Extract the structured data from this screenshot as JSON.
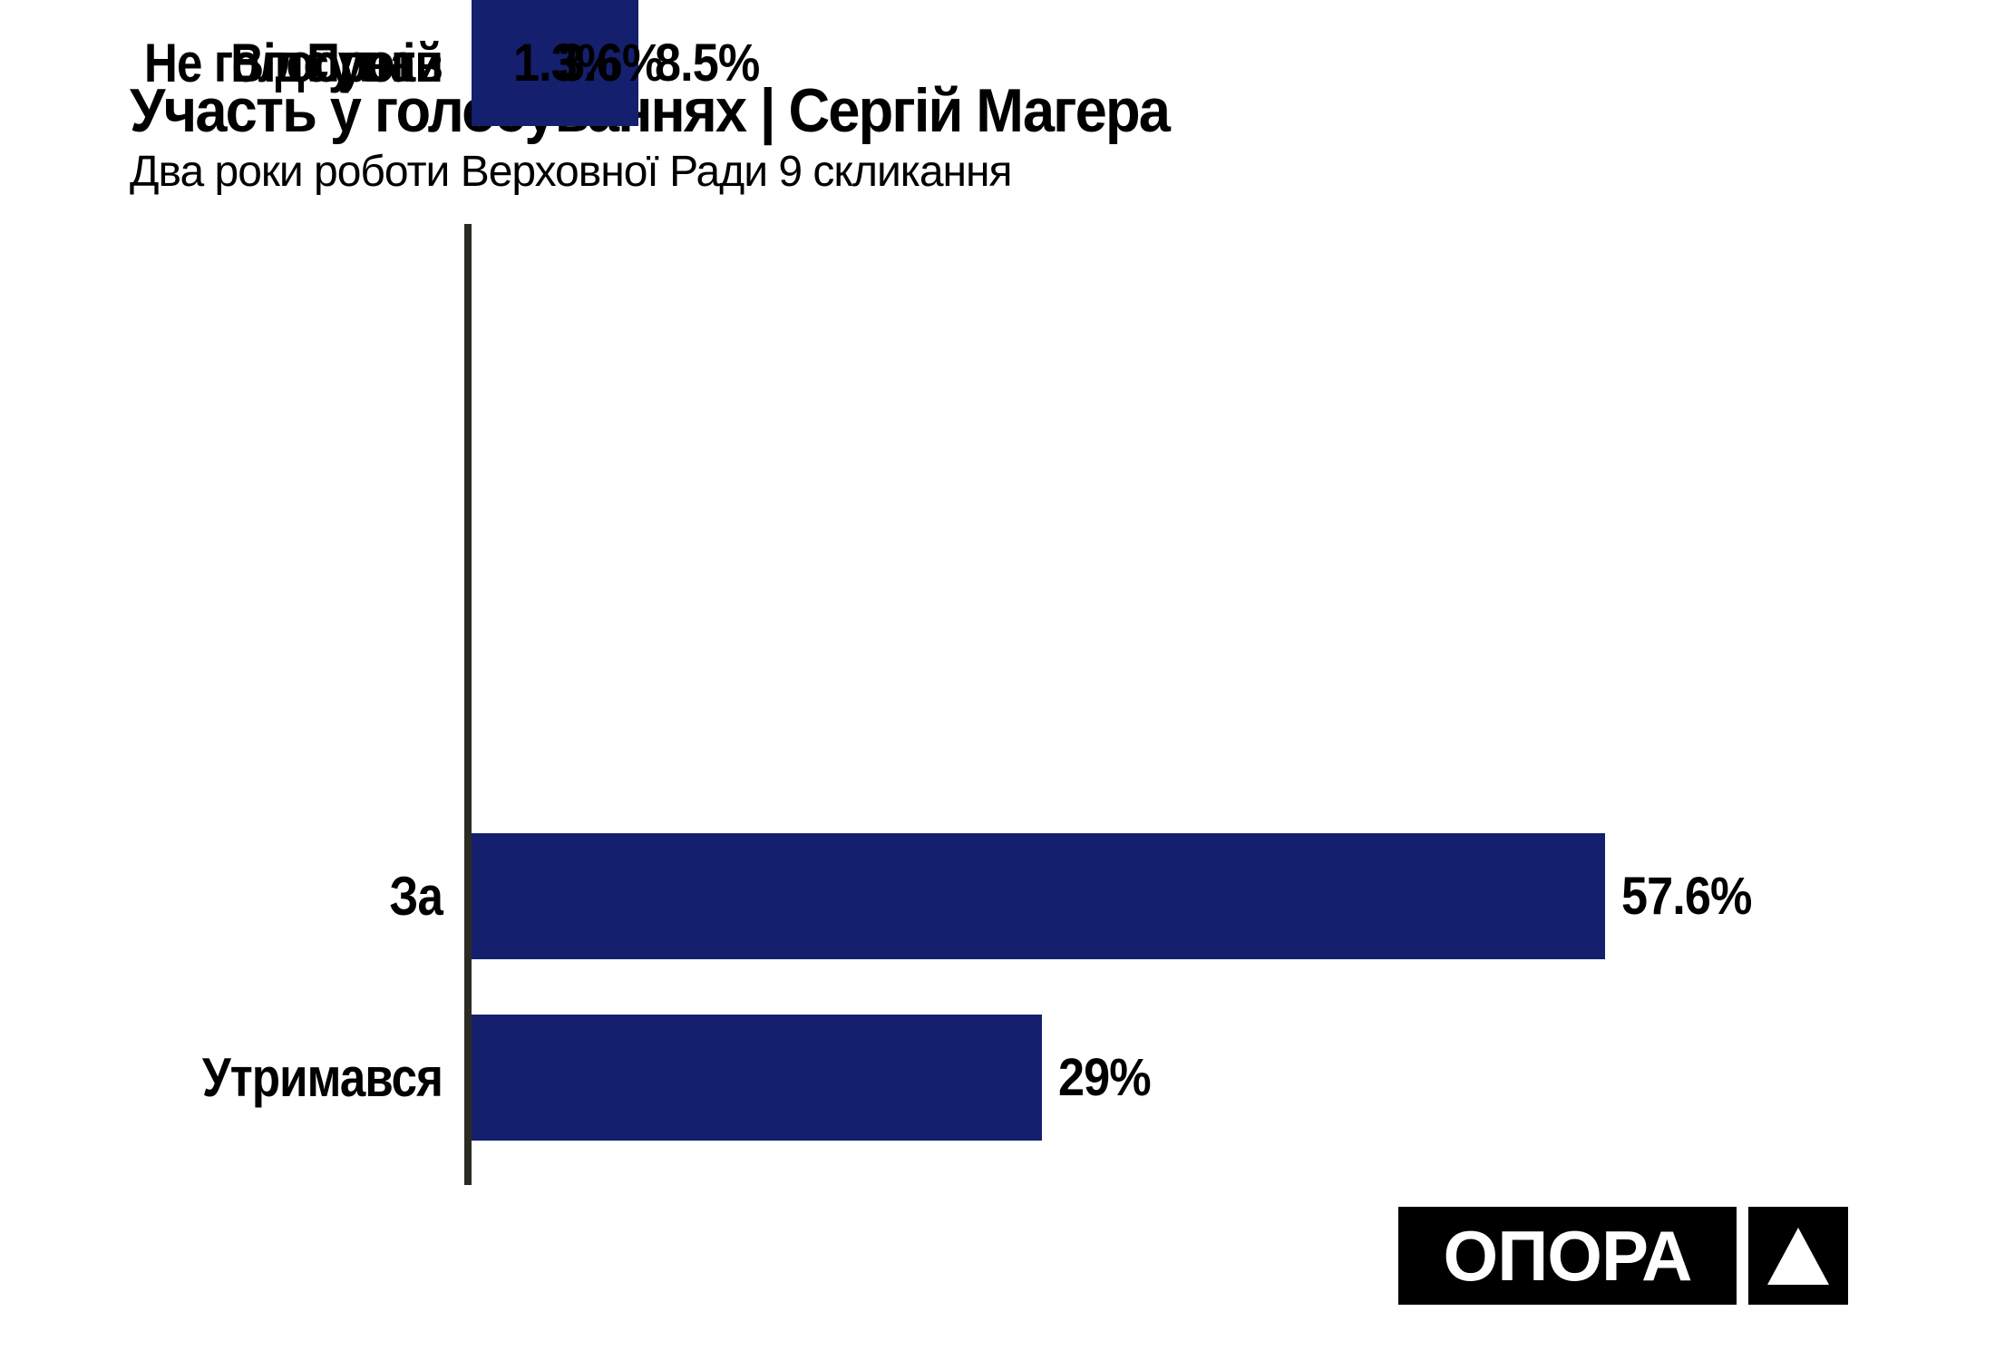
{
  "header": {
    "title": "Участь у голосуваннях | Сергій Магера",
    "subtitle": "Два роки роботи Верховної Ради 9 скликання"
  },
  "chart_data": {
    "type": "bar",
    "orientation": "horizontal",
    "title": "Участь у голосуваннях | Сергій Магера",
    "subtitle": "Два роки роботи Верховної Ради 9 скликання",
    "categories": [
      "За",
      "Утримався",
      "Відсутній",
      "Не голосував",
      "Проти"
    ],
    "values": [
      57.6,
      29,
      8.5,
      3.6,
      1.3
    ],
    "value_labels": [
      "57.6%",
      "29%",
      "8.5%",
      "3.6%",
      "1.3%"
    ],
    "xlabel": "",
    "ylabel": "",
    "xlim": [
      0,
      60.5
    ],
    "grid": false,
    "legend": false,
    "bar_color": "#141f6e",
    "axis_color": "#2b2b23",
    "text_color": "#000000",
    "value_label_position": "right-of-bar"
  },
  "logo": {
    "text": "ОПОРА",
    "icon": "triangle-up-icon",
    "background": "#000000",
    "foreground": "#ffffff"
  }
}
